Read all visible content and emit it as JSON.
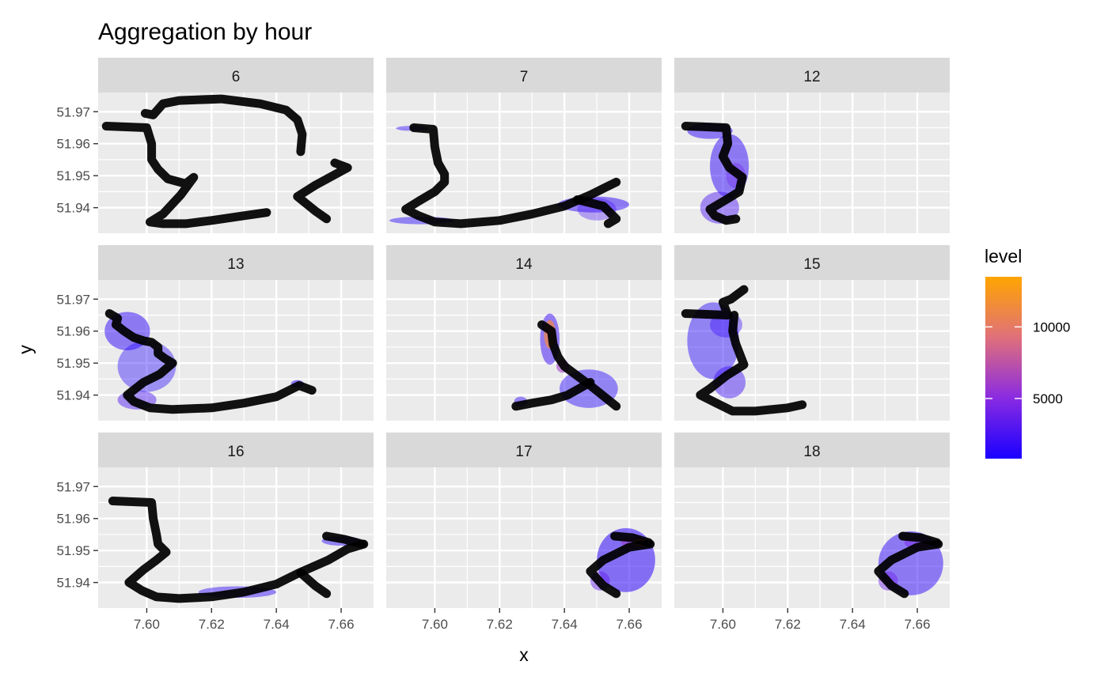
{
  "chart_data": {
    "type": "faceted-path-density",
    "title": "Aggregation by hour",
    "xlabel": "x",
    "ylabel": "y",
    "xlim": [
      7.585,
      7.67
    ],
    "ylim": [
      51.932,
      51.976
    ],
    "x_ticks": [
      7.6,
      7.62,
      7.64,
      7.66
    ],
    "x_tick_labels": [
      "7.60",
      "7.62",
      "7.64",
      "7.66"
    ],
    "y_ticks": [
      51.94,
      51.95,
      51.96,
      51.97
    ],
    "y_tick_labels": [
      "51.94",
      "51.95",
      "51.96",
      "51.97"
    ],
    "grid": true,
    "legend": {
      "title": "level",
      "position": "right",
      "range": [
        800,
        13500
      ],
      "ticks": [
        5000,
        10000
      ],
      "tick_labels": [
        "5000",
        "10000"
      ],
      "colors": [
        "#1a00ff",
        "#8a2be2",
        "#e0707a",
        "#ffa500"
      ]
    },
    "colors": {
      "panel_bg": "#ebebeb",
      "strip_bg": "#d9d9d9",
      "grid": "#ffffff",
      "track": "#000000",
      "density_fill": "#8080ff"
    },
    "facets": [
      {
        "label": "6",
        "track": [
          [
            7.5875,
            51.9655
          ],
          [
            7.6,
            51.965
          ],
          [
            7.6015,
            51.96
          ],
          [
            7.6015,
            51.955
          ],
          [
            7.6035,
            51.952
          ],
          [
            7.6065,
            51.949
          ],
          [
            7.612,
            51.9475
          ],
          [
            7.6145,
            51.9495
          ],
          [
            7.6105,
            51.944
          ],
          [
            7.605,
            51.938
          ],
          [
            7.601,
            51.9355
          ],
          [
            7.605,
            51.935
          ],
          [
            7.612,
            51.935
          ],
          [
            7.62,
            51.936
          ],
          [
            7.63,
            51.9375
          ],
          [
            7.637,
            51.9385
          ]
        ],
        "track2": [
          [
            7.5995,
            51.9695
          ],
          [
            7.602,
            51.969
          ],
          [
            7.605,
            51.9725
          ],
          [
            7.61,
            51.9735
          ],
          [
            7.623,
            51.974
          ],
          [
            7.635,
            51.9725
          ],
          [
            7.643,
            51.9705
          ],
          [
            7.6465,
            51.9675
          ],
          [
            7.648,
            51.963
          ],
          [
            7.6475,
            51.9575
          ]
        ],
        "track3": [
          [
            7.6555,
            51.9365
          ],
          [
            7.652,
            51.939
          ],
          [
            7.6465,
            51.9435
          ],
          [
            7.652,
            51.947
          ],
          [
            7.662,
            51.9525
          ],
          [
            7.658,
            51.954
          ]
        ],
        "density": []
      },
      {
        "label": "7",
        "track": [
          [
            7.5935,
            51.965
          ],
          [
            7.5995,
            51.9645
          ],
          [
            7.6,
            51.959
          ],
          [
            7.601,
            51.954
          ],
          [
            7.603,
            51.9505
          ],
          [
            7.603,
            51.948
          ],
          [
            7.6,
            51.945
          ],
          [
            7.595,
            51.942
          ],
          [
            7.591,
            51.9395
          ],
          [
            7.595,
            51.9375
          ],
          [
            7.6,
            51.9355
          ],
          [
            7.608,
            51.935
          ],
          [
            7.62,
            51.936
          ],
          [
            7.63,
            51.938
          ],
          [
            7.64,
            51.9405
          ],
          [
            7.648,
            51.944
          ],
          [
            7.656,
            51.948
          ]
        ],
        "track2": [
          [
            7.644,
            51.9425
          ],
          [
            7.652,
            51.9405
          ],
          [
            7.656,
            51.9365
          ],
          [
            7.6535,
            51.935
          ]
        ],
        "track3": [],
        "density": [
          {
            "x": 7.593,
            "y": 51.9648,
            "rx": 0.005,
            "ry": 0.0008,
            "level": 1500,
            "a": 0.45
          },
          {
            "x": 7.649,
            "y": 51.941,
            "rx": 0.011,
            "ry": 0.0025,
            "level": 1500,
            "a": 0.5
          },
          {
            "x": 7.65,
            "y": 51.9395,
            "rx": 0.006,
            "ry": 0.0035,
            "level": 2500,
            "a": 0.35
          },
          {
            "x": 7.596,
            "y": 51.936,
            "rx": 0.01,
            "ry": 0.0012,
            "level": 1200,
            "a": 0.45
          }
        ]
      },
      {
        "label": "12",
        "track": [
          [
            7.5885,
            51.9655
          ],
          [
            7.601,
            51.965
          ],
          [
            7.6015,
            51.96
          ],
          [
            7.6,
            51.956
          ],
          [
            7.602,
            51.9525
          ],
          [
            7.606,
            51.9495
          ],
          [
            7.605,
            51.945
          ],
          [
            7.601,
            51.9425
          ],
          [
            7.596,
            51.9395
          ],
          [
            7.5975,
            51.9375
          ],
          [
            7.601,
            51.936
          ],
          [
            7.604,
            51.9365
          ]
        ],
        "track2": [],
        "track3": [],
        "density": [
          {
            "x": 7.596,
            "y": 51.964,
            "rx": 0.007,
            "ry": 0.0025,
            "level": 1500,
            "a": 0.5
          },
          {
            "x": 7.602,
            "y": 51.953,
            "rx": 0.006,
            "ry": 0.01,
            "level": 1500,
            "a": 0.5
          },
          {
            "x": 7.599,
            "y": 51.94,
            "rx": 0.006,
            "ry": 0.005,
            "level": 2500,
            "a": 0.45
          },
          {
            "x": 7.604,
            "y": 51.95,
            "rx": 0.003,
            "ry": 0.004,
            "level": 4000,
            "a": 0.35
          }
        ]
      },
      {
        "label": "13",
        "track": [
          [
            7.5885,
            51.9655
          ],
          [
            7.591,
            51.964
          ],
          [
            7.5905,
            51.962
          ],
          [
            7.593,
            51.96
          ],
          [
            7.596,
            51.958
          ],
          [
            7.599,
            51.957
          ],
          [
            7.6015,
            51.9565
          ],
          [
            7.6035,
            51.955
          ],
          [
            7.6035,
            51.953
          ],
          [
            7.6055,
            51.9515
          ],
          [
            7.608,
            51.95
          ],
          [
            7.604,
            51.9465
          ],
          [
            7.599,
            51.944
          ],
          [
            7.594,
            51.94
          ],
          [
            7.596,
            51.938
          ],
          [
            7.601,
            51.936
          ],
          [
            7.608,
            51.9355
          ],
          [
            7.62,
            51.936
          ],
          [
            7.63,
            51.9375
          ],
          [
            7.64,
            51.9395
          ],
          [
            7.647,
            51.943
          ],
          [
            7.651,
            51.9415
          ]
        ],
        "track2": [],
        "track3": [],
        "density": [
          {
            "x": 7.594,
            "y": 51.96,
            "rx": 0.007,
            "ry": 0.006,
            "level": 1500,
            "a": 0.5
          },
          {
            "x": 7.6,
            "y": 51.949,
            "rx": 0.009,
            "ry": 0.008,
            "level": 1200,
            "a": 0.4
          },
          {
            "x": 7.597,
            "y": 51.9385,
            "rx": 0.006,
            "ry": 0.003,
            "level": 2500,
            "a": 0.45
          },
          {
            "x": 7.6465,
            "y": 51.9435,
            "rx": 0.002,
            "ry": 0.0012,
            "level": 1500,
            "a": 0.5
          }
        ]
      },
      {
        "label": "14",
        "track": [
          [
            7.633,
            51.962
          ],
          [
            7.636,
            51.96
          ],
          [
            7.6365,
            51.956
          ],
          [
            7.638,
            51.952
          ],
          [
            7.64,
            51.949
          ],
          [
            7.644,
            51.946
          ],
          [
            7.648,
            51.943
          ],
          [
            7.656,
            51.9365
          ]
        ],
        "track2": [
          [
            7.625,
            51.9365
          ],
          [
            7.63,
            51.9375
          ],
          [
            7.636,
            51.9385
          ],
          [
            7.641,
            51.94
          ],
          [
            7.648,
            51.944
          ]
        ],
        "track3": [],
        "density": [
          {
            "x": 7.6355,
            "y": 51.9575,
            "rx": 0.003,
            "ry": 0.008,
            "level": 2000,
            "a": 0.5
          },
          {
            "x": 7.6475,
            "y": 51.942,
            "rx": 0.009,
            "ry": 0.006,
            "level": 1200,
            "a": 0.45
          },
          {
            "x": 7.6355,
            "y": 51.959,
            "rx": 0.0018,
            "ry": 0.0045,
            "level": 11000,
            "a": 0.75
          },
          {
            "x": 7.6395,
            "y": 51.949,
            "rx": 0.002,
            "ry": 0.002,
            "level": 6000,
            "a": 0.55
          },
          {
            "x": 7.6265,
            "y": 51.938,
            "rx": 0.002,
            "ry": 0.0015,
            "level": 1500,
            "a": 0.45
          }
        ]
      },
      {
        "label": "15",
        "track": [
          [
            7.5885,
            51.9655
          ],
          [
            7.6015,
            51.965
          ],
          [
            7.6,
            51.969
          ],
          [
            7.6025,
            51.97
          ],
          [
            7.6065,
            51.973
          ]
        ],
        "track2": [
          [
            7.6035,
            51.965
          ],
          [
            7.603,
            51.96
          ],
          [
            7.604,
            51.956
          ],
          [
            7.6065,
            51.9495
          ],
          [
            7.601,
            51.946
          ],
          [
            7.596,
            51.942
          ],
          [
            7.593,
            51.94
          ],
          [
            7.598,
            51.9375
          ],
          [
            7.603,
            51.935
          ],
          [
            7.61,
            51.935
          ],
          [
            7.62,
            51.936
          ],
          [
            7.6245,
            51.937
          ]
        ],
        "track3": [],
        "density": [
          {
            "x": 7.597,
            "y": 51.957,
            "rx": 0.008,
            "ry": 0.012,
            "level": 1200,
            "a": 0.45
          },
          {
            "x": 7.601,
            "y": 51.962,
            "rx": 0.005,
            "ry": 0.004,
            "level": 2000,
            "a": 0.4
          },
          {
            "x": 7.602,
            "y": 51.944,
            "rx": 0.005,
            "ry": 0.005,
            "level": 2000,
            "a": 0.45
          }
        ]
      },
      {
        "label": "16",
        "track": [
          [
            7.5895,
            51.9655
          ],
          [
            7.6015,
            51.965
          ],
          [
            7.602,
            51.96
          ],
          [
            7.603,
            51.955
          ],
          [
            7.6035,
            51.952
          ],
          [
            7.606,
            51.9495
          ],
          [
            7.603,
            51.947
          ],
          [
            7.599,
            51.944
          ],
          [
            7.5945,
            51.94
          ],
          [
            7.5985,
            51.9375
          ],
          [
            7.603,
            51.9355
          ],
          [
            7.61,
            51.935
          ],
          [
            7.62,
            51.9355
          ],
          [
            7.63,
            51.937
          ],
          [
            7.64,
            51.9395
          ],
          [
            7.647,
            51.943
          ],
          [
            7.656,
            51.947
          ],
          [
            7.662,
            51.9505
          ],
          [
            7.667,
            51.952
          ]
        ],
        "track2": [
          [
            7.6555,
            51.9365
          ],
          [
            7.652,
            51.939
          ],
          [
            7.6475,
            51.943
          ]
        ],
        "track3": [
          [
            7.6555,
            51.9545
          ],
          [
            7.661,
            51.9535
          ],
          [
            7.6665,
            51.952
          ]
        ],
        "density": [
          {
            "x": 7.628,
            "y": 51.937,
            "rx": 0.012,
            "ry": 0.0018,
            "level": 1500,
            "a": 0.45
          },
          {
            "x": 7.66,
            "y": 51.953,
            "rx": 0.006,
            "ry": 0.0015,
            "level": 1200,
            "a": 0.45
          }
        ]
      },
      {
        "label": "17",
        "track": [
          [
            7.656,
            51.9365
          ],
          [
            7.652,
            51.939
          ],
          [
            7.648,
            51.9435
          ],
          [
            7.652,
            51.947
          ],
          [
            7.66,
            51.951
          ],
          [
            7.6665,
            51.952
          ]
        ],
        "track2": [
          [
            7.6555,
            51.9545
          ],
          [
            7.661,
            51.954
          ],
          [
            7.666,
            51.9525
          ]
        ],
        "track3": [],
        "density": [
          {
            "x": 7.659,
            "y": 51.947,
            "rx": 0.009,
            "ry": 0.01,
            "level": 1500,
            "a": 0.55
          },
          {
            "x": 7.6615,
            "y": 51.9525,
            "rx": 0.004,
            "ry": 0.0018,
            "level": 6000,
            "a": 0.6
          },
          {
            "x": 7.6635,
            "y": 51.9525,
            "rx": 0.0022,
            "ry": 0.0012,
            "level": 12000,
            "a": 0.8
          },
          {
            "x": 7.651,
            "y": 51.9405,
            "rx": 0.003,
            "ry": 0.003,
            "level": 3500,
            "a": 0.45
          }
        ]
      },
      {
        "label": "18",
        "track": [
          [
            7.656,
            51.9365
          ],
          [
            7.652,
            51.939
          ],
          [
            7.648,
            51.9435
          ],
          [
            7.652,
            51.947
          ],
          [
            7.66,
            51.951
          ],
          [
            7.6665,
            51.952
          ]
        ],
        "track2": [
          [
            7.6555,
            51.9545
          ],
          [
            7.661,
            51.954
          ],
          [
            7.666,
            51.9525
          ]
        ],
        "track3": [],
        "density": [
          {
            "x": 7.658,
            "y": 51.946,
            "rx": 0.01,
            "ry": 0.01,
            "level": 1500,
            "a": 0.5
          },
          {
            "x": 7.66,
            "y": 51.9525,
            "rx": 0.004,
            "ry": 0.002,
            "level": 4500,
            "a": 0.5
          },
          {
            "x": 7.651,
            "y": 51.9405,
            "rx": 0.003,
            "ry": 0.003,
            "level": 4000,
            "a": 0.45
          }
        ]
      }
    ]
  }
}
